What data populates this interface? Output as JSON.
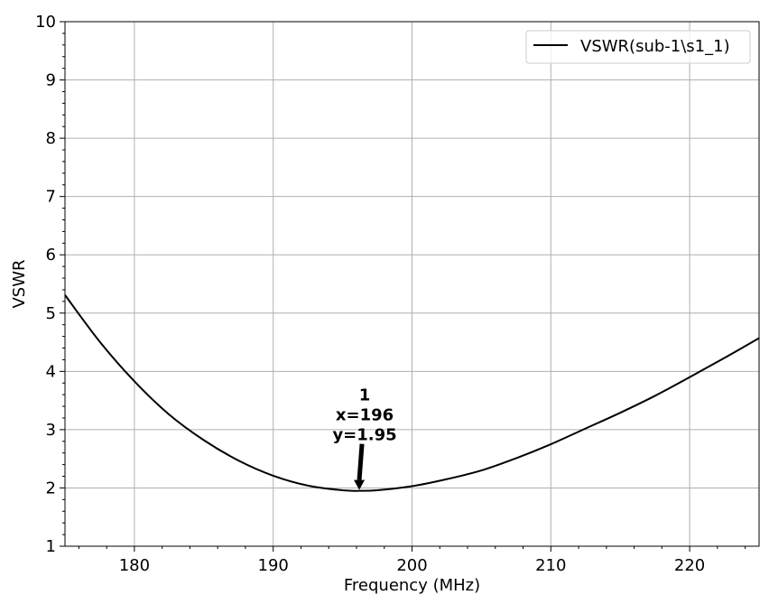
{
  "chart_data": {
    "type": "line",
    "title": "",
    "xlabel": "Frequency (MHz)",
    "ylabel": "VSWR",
    "xlim": [
      175,
      225
    ],
    "ylim": [
      1,
      10
    ],
    "xticks": [
      180,
      190,
      200,
      210,
      220
    ],
    "yticks": [
      1,
      2,
      3,
      4,
      5,
      6,
      7,
      8,
      9,
      10
    ],
    "grid": true,
    "legend_position": "top-right",
    "series": [
      {
        "name": "VSWR(sub-1\\s1_1)",
        "color": "#000000",
        "x": [
          175,
          177.5,
          180,
          182.5,
          185,
          187.5,
          190,
          192.5,
          195,
          196.2,
          197.5,
          200,
          202.5,
          205,
          207.5,
          210,
          212.5,
          215,
          217.5,
          220,
          222.5,
          225
        ],
        "y": [
          5.31,
          4.51,
          3.83,
          3.26,
          2.82,
          2.47,
          2.21,
          2.04,
          1.96,
          1.95,
          1.96,
          2.03,
          2.15,
          2.3,
          2.51,
          2.75,
          3.02,
          3.29,
          3.58,
          3.9,
          4.23,
          4.57
        ]
      }
    ],
    "annotations": [
      {
        "label": "1",
        "x": 196.2,
        "y": 1.95,
        "x_text": "x=196",
        "y_text": "y=1.95"
      }
    ]
  }
}
